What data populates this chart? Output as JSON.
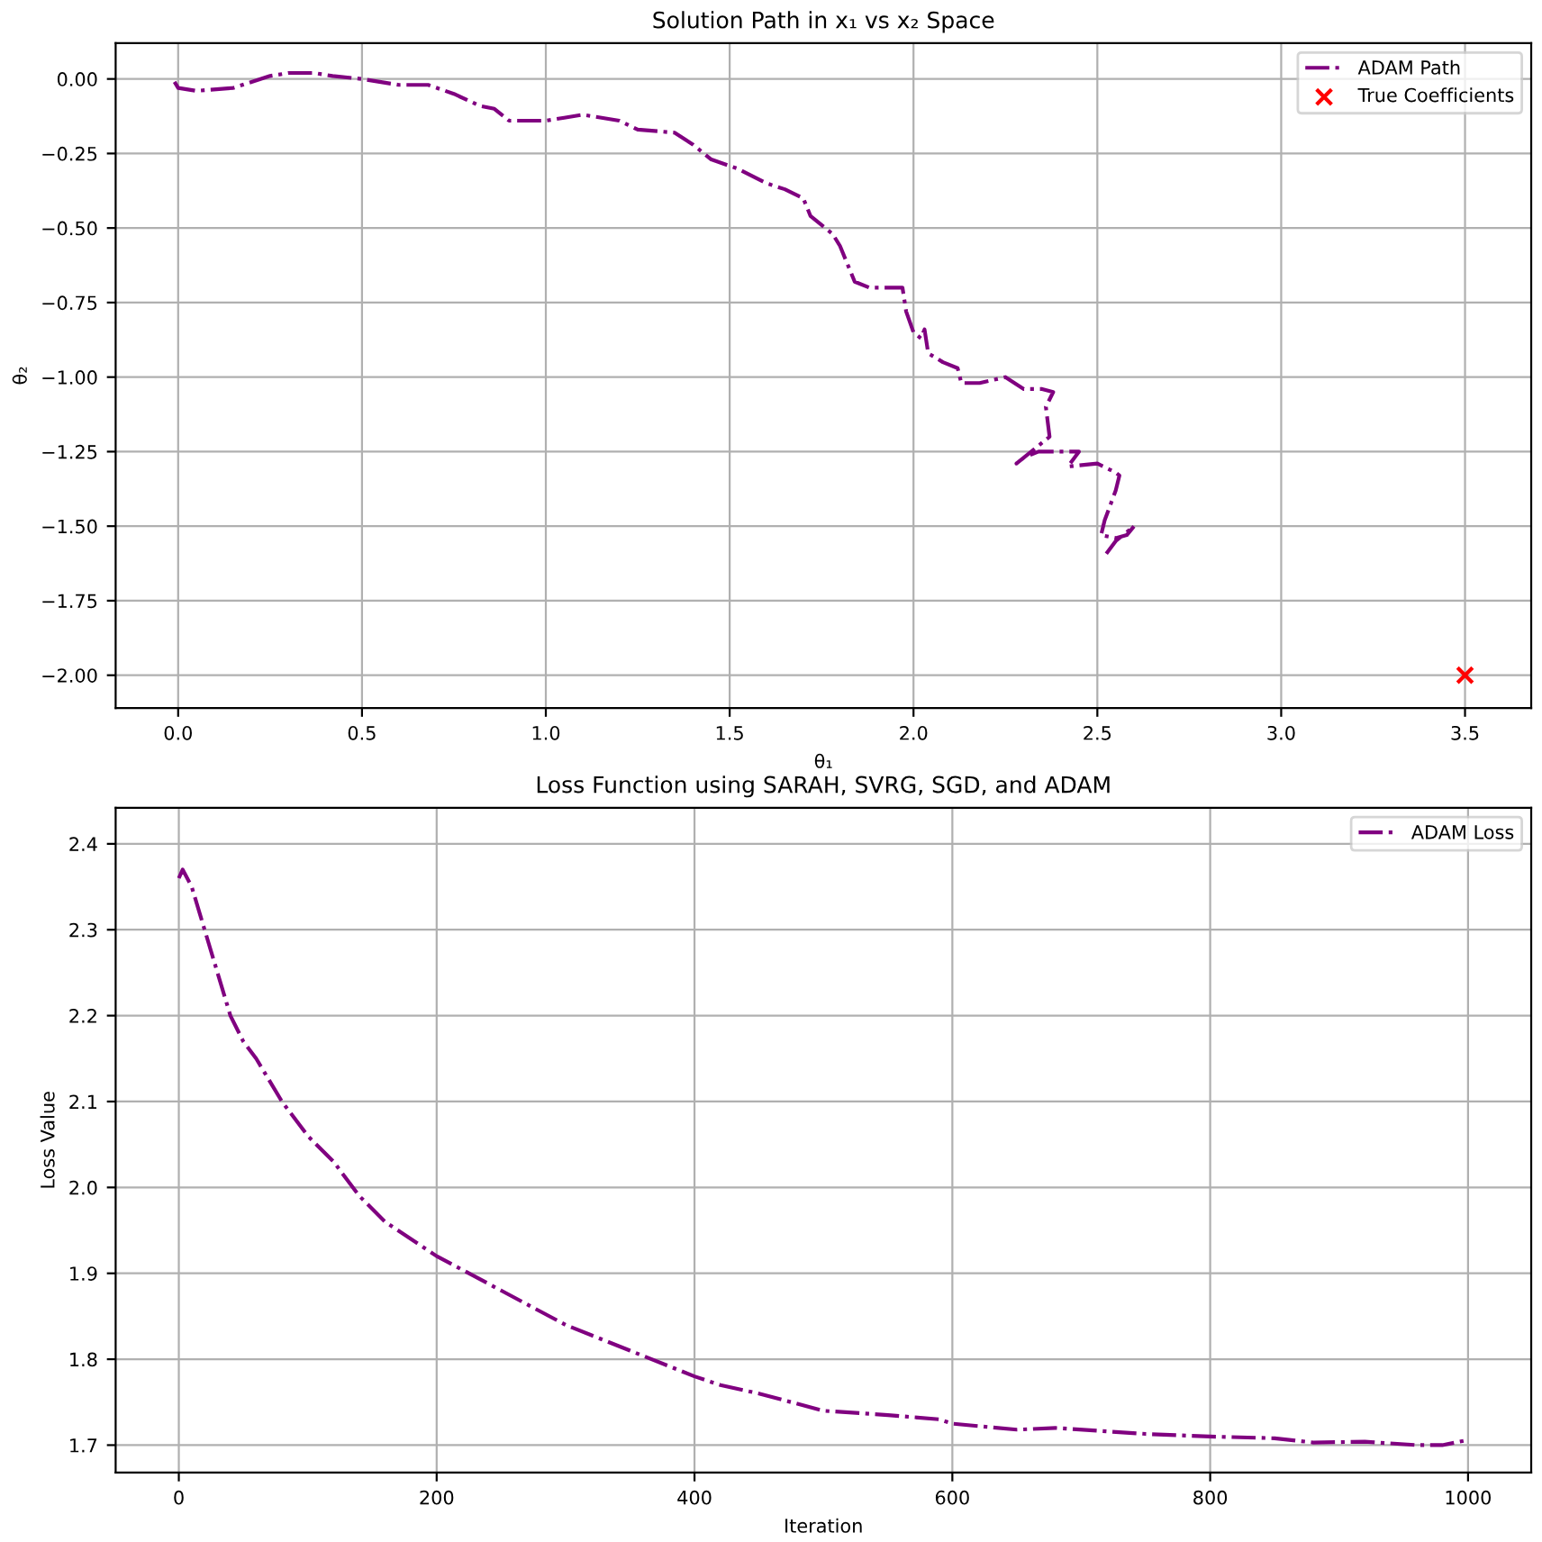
{
  "chart_data": [
    {
      "type": "line",
      "title": "Solution Path in x₁ vs x₂ Space",
      "xlabel": "θ₁",
      "ylabel": "θ₂",
      "xlim": [
        -0.17,
        3.68
      ],
      "ylim": [
        -2.11,
        0.12
      ],
      "xticks": [
        {
          "value": 0,
          "label": "0.0"
        },
        0.5,
        {
          "value": 1,
          "label": "1.0"
        },
        1.5,
        {
          "value": 2,
          "label": "2.0"
        },
        2.5,
        {
          "value": 3,
          "label": "3.0"
        },
        3.5
      ],
      "yticks": [
        {
          "value": 0,
          "label": "0.00"
        },
        {
          "value": -0.25,
          "label": "−0.25"
        },
        {
          "value": -0.5,
          "label": "−0.50"
        },
        {
          "value": -0.75,
          "label": "−0.75"
        },
        {
          "value": -1,
          "label": "−1.00"
        },
        {
          "value": -1.25,
          "label": "−1.25"
        },
        {
          "value": -1.5,
          "label": "−1.50"
        },
        {
          "value": -1.75,
          "label": "−1.75"
        },
        {
          "value": -2,
          "label": "−2.00"
        }
      ],
      "grid": true,
      "legend": "top right",
      "series": [
        {
          "name": "ADAM Path",
          "color": "#800080",
          "line_style": "dashdot",
          "marker": "none",
          "x": [
            -0.01,
            0.0,
            0.05,
            0.15,
            0.25,
            0.3,
            0.37,
            0.42,
            0.5,
            0.6,
            0.68,
            0.75,
            0.82,
            0.86,
            0.9,
            1.0,
            1.05,
            1.1,
            1.2,
            1.25,
            1.35,
            1.4,
            1.45,
            1.52,
            1.6,
            1.65,
            1.7,
            1.72,
            1.78,
            1.8,
            1.82,
            1.84,
            1.88,
            1.97,
            1.98,
            2.0,
            2.02,
            2.03,
            2.04,
            2.08,
            2.12,
            2.13,
            2.18,
            2.25,
            2.3,
            2.35,
            2.38,
            2.36,
            2.37,
            2.33,
            2.28,
            2.3,
            2.34,
            2.38,
            2.45,
            2.42,
            2.5,
            2.55,
            2.56,
            2.55,
            2.52,
            2.51,
            2.55,
            2.58,
            2.6,
            2.55,
            2.52
          ],
          "values": [
            -0.01,
            -0.03,
            -0.04,
            -0.03,
            0.01,
            0.02,
            0.02,
            0.01,
            0.0,
            -0.02,
            -0.02,
            -0.05,
            -0.09,
            -0.1,
            -0.14,
            -0.14,
            -0.13,
            -0.12,
            -0.14,
            -0.17,
            -0.18,
            -0.22,
            -0.27,
            -0.3,
            -0.35,
            -0.37,
            -0.4,
            -0.46,
            -0.52,
            -0.56,
            -0.62,
            -0.68,
            -0.7,
            -0.7,
            -0.78,
            -0.85,
            -0.87,
            -0.84,
            -0.92,
            -0.95,
            -0.97,
            -1.02,
            -1.02,
            -1.0,
            -1.04,
            -1.04,
            -1.05,
            -1.1,
            -1.2,
            -1.24,
            -1.29,
            -1.27,
            -1.25,
            -1.25,
            -1.25,
            -1.3,
            -1.29,
            -1.32,
            -1.33,
            -1.38,
            -1.48,
            -1.53,
            -1.54,
            -1.53,
            -1.5,
            -1.55,
            -1.6
          ]
        },
        {
          "name": "True Coefficients",
          "type": "scatter",
          "color": "#ff0000",
          "marker": "cross",
          "x": [
            3.5
          ],
          "values": [
            -2.0
          ]
        }
      ]
    },
    {
      "type": "line",
      "title": "Loss Function using SARAH, SVRG, SGD, and ADAM",
      "xlabel": "Iteration",
      "ylabel": "Loss Value",
      "xlim": [
        -49,
        1049
      ],
      "ylim": [
        1.668,
        2.442
      ],
      "xticks": [
        0,
        200,
        400,
        600,
        800,
        1000
      ],
      "yticks": [
        1.7,
        1.8,
        1.9,
        {
          "value": 2.0,
          "label": "2.0"
        },
        2.1,
        2.2,
        2.3,
        2.4
      ],
      "grid": true,
      "legend": "top right",
      "series": [
        {
          "name": "ADAM Loss",
          "color": "#800080",
          "line_style": "dashdot",
          "marker": "none",
          "x": [
            0,
            3,
            10,
            20,
            30,
            40,
            50,
            60,
            80,
            100,
            120,
            140,
            160,
            200,
            250,
            300,
            350,
            400,
            420,
            450,
            500,
            550,
            590,
            600,
            650,
            680,
            750,
            800,
            850,
            880,
            920,
            960,
            980,
            1000
          ],
          "values": [
            2.36,
            2.37,
            2.35,
            2.3,
            2.25,
            2.2,
            2.17,
            2.15,
            2.1,
            2.06,
            2.03,
            1.99,
            1.96,
            1.92,
            1.88,
            1.84,
            1.81,
            1.78,
            1.77,
            1.76,
            1.74,
            1.735,
            1.73,
            1.725,
            1.718,
            1.72,
            1.713,
            1.71,
            1.708,
            1.703,
            1.704,
            1.7,
            1.7,
            1.706
          ]
        }
      ]
    }
  ]
}
